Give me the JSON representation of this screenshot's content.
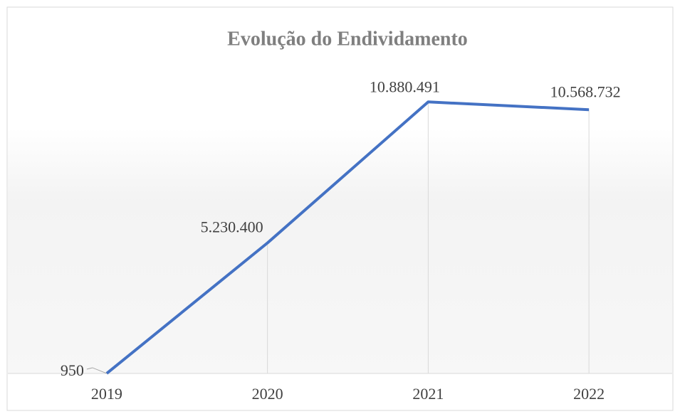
{
  "chart_data": {
    "type": "line",
    "title": "Evolução do Endividamento",
    "categories": [
      "2019",
      "2020",
      "2021",
      "2022"
    ],
    "values": [
      950,
      5230400,
      10880491,
      10568732
    ],
    "value_labels": [
      "950",
      "5.230.400",
      "10.880.491",
      "10.568.732"
    ],
    "color": "#4472c4",
    "ylim": [
      0,
      12000000
    ]
  }
}
